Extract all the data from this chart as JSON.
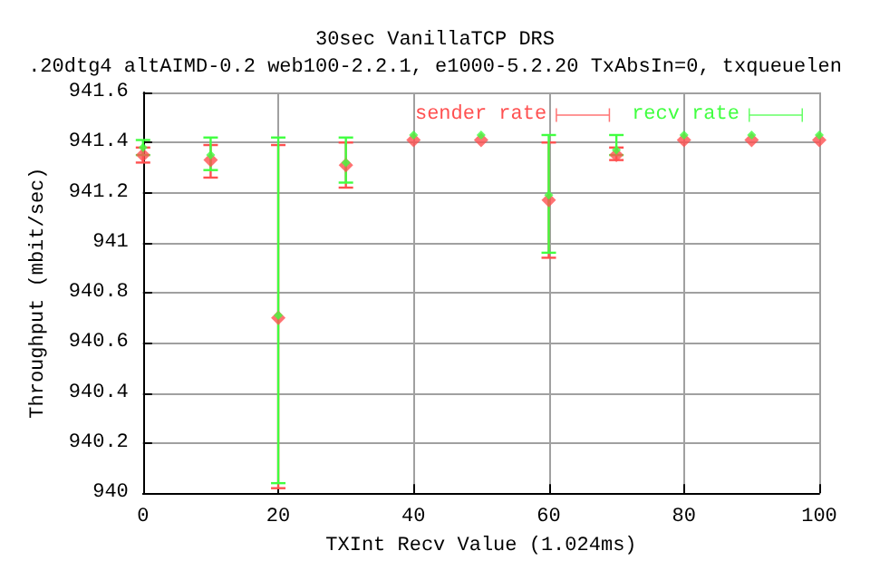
{
  "chart_data": {
    "type": "scatter",
    "title": "30sec VanillaTCP DRS",
    "subtitle": ".20dtg4 altAIMD-0.2 web100-2.2.1, e1000-5.2.20 TxAbsIn=0, txqueuelen",
    "xlabel": "TXInt Recv Value (1.024ms)",
    "ylabel": "Throughput (mbit/sec)",
    "x": [
      0,
      10,
      20,
      30,
      40,
      50,
      60,
      70,
      80,
      90,
      100
    ],
    "series": [
      {
        "name": "sender rate",
        "color": "#ff5050",
        "values": [
          941.35,
          941.33,
          940.7,
          941.31,
          941.41,
          941.41,
          941.17,
          941.35,
          941.41,
          941.41,
          941.41
        ],
        "errors": [
          [
            941.32,
            941.38
          ],
          [
            941.26,
            941.39
          ],
          [
            940.02,
            941.39
          ],
          [
            941.22,
            941.4
          ],
          null,
          null,
          [
            940.94,
            941.4
          ],
          [
            941.33,
            941.38
          ],
          null,
          null,
          null
        ]
      },
      {
        "name": "recv rate",
        "color": "#40ff40",
        "values": [
          941.38,
          941.35,
          940.71,
          941.32,
          941.43,
          941.43,
          941.19,
          941.37,
          941.43,
          941.43,
          941.43
        ],
        "errors": [
          [
            941.35,
            941.41
          ],
          [
            941.29,
            941.42
          ],
          [
            940.04,
            941.42
          ],
          [
            941.24,
            941.42
          ],
          null,
          null,
          [
            940.96,
            941.43
          ],
          [
            941.35,
            941.43
          ],
          null,
          null,
          null
        ]
      }
    ],
    "xlim": [
      0,
      100
    ],
    "xticks": [
      0,
      20,
      40,
      60,
      80,
      100
    ],
    "ylim": [
      940,
      941.6
    ],
    "yticks": [
      940,
      940.2,
      940.4,
      940.6,
      940.8,
      941,
      941.2,
      941.4,
      941.6
    ],
    "grid": true,
    "legend": "top right",
    "marker": "diamond"
  }
}
